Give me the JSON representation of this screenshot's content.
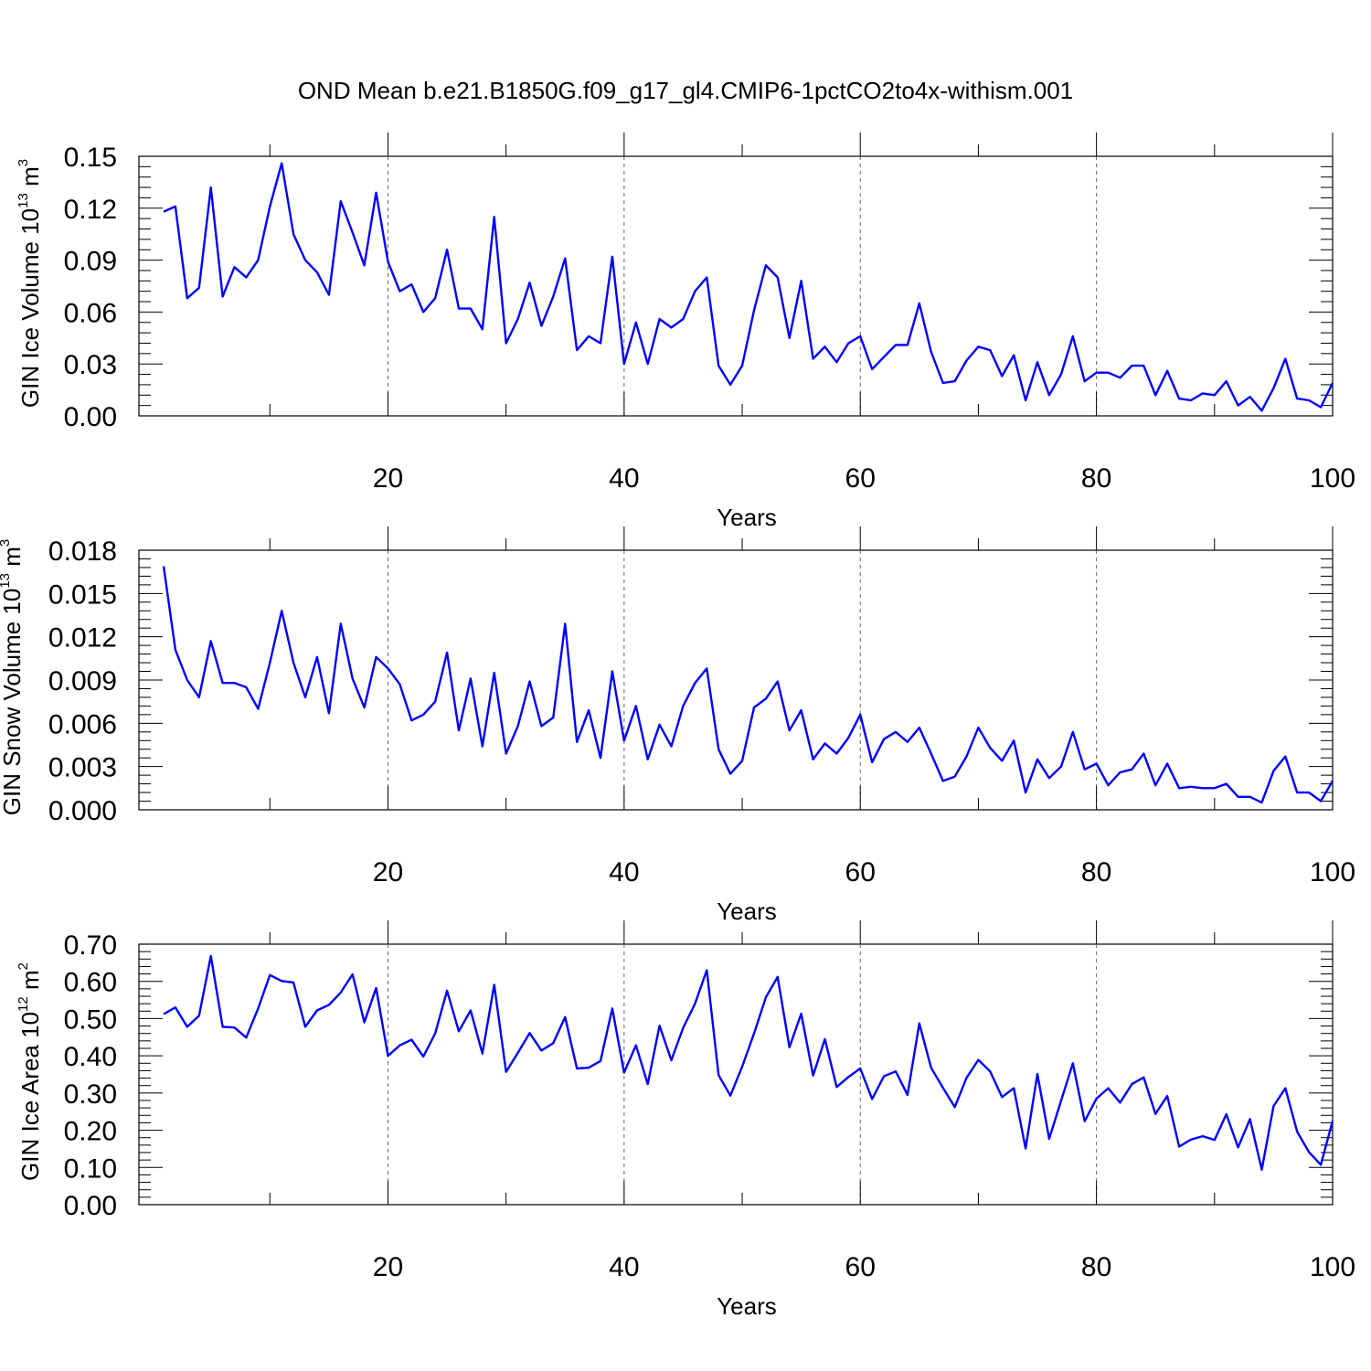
{
  "figure_title": "OND Mean b.e21.B1850G.f09_g17_gl4.CMIP6-1pctCO2to4x-withism.001",
  "chart_data": [
    {
      "type": "line",
      "ylabel": {
        "prefix": "GIN Ice Volume 10",
        "exp": "13",
        "unit": " m",
        "unit_exp": "3"
      },
      "xlabel": "Years",
      "xlim": [
        1,
        100
      ],
      "ylim": [
        0,
        0.15
      ],
      "x_ticks": [
        20,
        40,
        60,
        80,
        100
      ],
      "x_tick_labels": [
        "20",
        "40",
        "60",
        "80",
        "100"
      ],
      "y_ticks": [
        0,
        0.03,
        0.06,
        0.09,
        0.12,
        0.15
      ],
      "y_tick_labels": [
        "0.00",
        "0.03",
        "0.06",
        "0.09",
        "0.12",
        "0.15"
      ],
      "grid": "vertical dashed at major x ticks",
      "color": "#0000ff",
      "x_start": 1,
      "values": [
        0.118,
        0.121,
        0.068,
        0.074,
        0.132,
        0.069,
        0.086,
        0.08,
        0.09,
        0.121,
        0.146,
        0.105,
        0.09,
        0.083,
        0.07,
        0.124,
        0.106,
        0.087,
        0.129,
        0.089,
        0.072,
        0.076,
        0.06,
        0.068,
        0.096,
        0.062,
        0.062,
        0.05,
        0.115,
        0.042,
        0.056,
        0.077,
        0.052,
        0.069,
        0.091,
        0.038,
        0.046,
        0.042,
        0.092,
        0.03,
        0.054,
        0.03,
        0.056,
        0.051,
        0.056,
        0.072,
        0.08,
        0.029,
        0.018,
        0.029,
        0.061,
        0.087,
        0.08,
        0.045,
        0.078,
        0.033,
        0.04,
        0.031,
        0.042,
        0.046,
        0.027,
        0.034,
        0.041,
        0.041,
        0.065,
        0.037,
        0.019,
        0.02,
        0.032,
        0.04,
        0.038,
        0.023,
        0.035,
        0.009,
        0.031,
        0.012,
        0.024,
        0.046,
        0.02,
        0.025,
        0.025,
        0.022,
        0.029,
        0.029,
        0.012,
        0.026,
        0.01,
        0.009,
        0.013,
        0.012,
        0.02,
        0.006,
        0.011,
        0.003,
        0.016,
        0.033,
        0.01,
        0.009,
        0.005,
        0.019
      ]
    },
    {
      "type": "line",
      "ylabel": {
        "prefix": "GIN Snow Volume 10",
        "exp": "13",
        "unit": " m",
        "unit_exp": "3"
      },
      "xlabel": "Years",
      "xlim": [
        1,
        100
      ],
      "ylim": [
        0,
        0.018
      ],
      "x_ticks": [
        20,
        40,
        60,
        80,
        100
      ],
      "x_tick_labels": [
        "20",
        "40",
        "60",
        "80",
        "100"
      ],
      "y_ticks": [
        0,
        0.003,
        0.006,
        0.009,
        0.012,
        0.015,
        0.018
      ],
      "y_tick_labels": [
        "0.000",
        "0.003",
        "0.006",
        "0.009",
        "0.012",
        "0.015",
        "0.018"
      ],
      "grid": "vertical dashed at major x ticks",
      "color": "#0000ff",
      "x_start": 1,
      "values": [
        0.0169,
        0.0111,
        0.009,
        0.0078,
        0.0117,
        0.0088,
        0.0088,
        0.0085,
        0.007,
        0.0102,
        0.0138,
        0.0102,
        0.0078,
        0.0106,
        0.0067,
        0.0129,
        0.0091,
        0.0071,
        0.0106,
        0.0098,
        0.0087,
        0.0062,
        0.0066,
        0.0075,
        0.0109,
        0.0055,
        0.0091,
        0.0044,
        0.0095,
        0.0039,
        0.0058,
        0.0089,
        0.0058,
        0.0064,
        0.0129,
        0.0047,
        0.0069,
        0.0036,
        0.0096,
        0.0048,
        0.0072,
        0.0035,
        0.0059,
        0.0044,
        0.0072,
        0.0088,
        0.0098,
        0.0042,
        0.0025,
        0.0034,
        0.0071,
        0.0077,
        0.0089,
        0.0055,
        0.0069,
        0.0035,
        0.0046,
        0.0039,
        0.005,
        0.0066,
        0.0033,
        0.0049,
        0.0054,
        0.0047,
        0.0057,
        0.0039,
        0.002,
        0.0023,
        0.0037,
        0.0057,
        0.0043,
        0.0034,
        0.0048,
        0.0012,
        0.0035,
        0.0022,
        0.003,
        0.0054,
        0.0028,
        0.0032,
        0.0017,
        0.0026,
        0.0028,
        0.0039,
        0.0017,
        0.0032,
        0.0015,
        0.0016,
        0.0015,
        0.0015,
        0.0018,
        0.0009,
        0.0009,
        0.0005,
        0.0027,
        0.0037,
        0.0012,
        0.0012,
        0.0006,
        0.002
      ]
    },
    {
      "type": "line",
      "ylabel": {
        "prefix": "GIN Ice Area 10",
        "exp": "12",
        "unit": " m",
        "unit_exp": "2"
      },
      "xlabel": "Years",
      "xlim": [
        1,
        100
      ],
      "ylim": [
        0,
        0.7
      ],
      "x_ticks": [
        20,
        40,
        60,
        80,
        100
      ],
      "x_tick_labels": [
        "20",
        "40",
        "60",
        "80",
        "100"
      ],
      "y_ticks": [
        0,
        0.1,
        0.2,
        0.3,
        0.4,
        0.5,
        0.6,
        0.7
      ],
      "y_tick_labels": [
        "0.00",
        "0.10",
        "0.20",
        "0.30",
        "0.40",
        "0.50",
        "0.60",
        "0.70"
      ],
      "grid": "vertical dashed at major x ticks",
      "color": "#0000ff",
      "x_start": 1,
      "values": [
        0.512,
        0.53,
        0.478,
        0.508,
        0.668,
        0.478,
        0.476,
        0.449,
        0.527,
        0.617,
        0.601,
        0.597,
        0.478,
        0.522,
        0.537,
        0.57,
        0.619,
        0.49,
        0.582,
        0.4,
        0.428,
        0.443,
        0.398,
        0.46,
        0.575,
        0.466,
        0.522,
        0.406,
        0.591,
        0.357,
        0.408,
        0.461,
        0.414,
        0.434,
        0.504,
        0.366,
        0.368,
        0.386,
        0.527,
        0.355,
        0.428,
        0.324,
        0.481,
        0.388,
        0.475,
        0.54,
        0.63,
        0.348,
        0.293,
        0.371,
        0.46,
        0.557,
        0.612,
        0.423,
        0.513,
        0.347,
        0.445,
        0.316,
        0.343,
        0.366,
        0.284,
        0.345,
        0.358,
        0.295,
        0.487,
        0.368,
        0.314,
        0.262,
        0.341,
        0.389,
        0.358,
        0.289,
        0.313,
        0.151,
        0.351,
        0.177,
        0.279,
        0.38,
        0.224,
        0.285,
        0.313,
        0.274,
        0.324,
        0.342,
        0.244,
        0.292,
        0.156,
        0.175,
        0.184,
        0.174,
        0.243,
        0.154,
        0.23,
        0.094,
        0.265,
        0.313,
        0.196,
        0.141,
        0.107,
        0.225
      ]
    }
  ]
}
